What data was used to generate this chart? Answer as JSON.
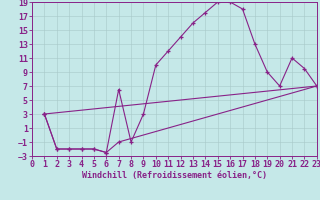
{
  "background_color": "#c5e8e8",
  "grid_color": "#a8c8c8",
  "line_color": "#882288",
  "xlabel": "Windchill (Refroidissement éolien,°C)",
  "xlim": [
    0,
    23
  ],
  "ylim": [
    -3,
    19
  ],
  "xticks": [
    0,
    1,
    2,
    3,
    4,
    5,
    6,
    7,
    8,
    9,
    10,
    11,
    12,
    13,
    14,
    15,
    16,
    17,
    18,
    19,
    20,
    21,
    22,
    23
  ],
  "yticks": [
    -3,
    -1,
    1,
    3,
    5,
    7,
    9,
    11,
    13,
    15,
    17,
    19
  ],
  "curve1_x": [
    1,
    2,
    3,
    4,
    5,
    6,
    7,
    8,
    9,
    10,
    11,
    12,
    13,
    14,
    15,
    16,
    17,
    18,
    19,
    20,
    21,
    22,
    23
  ],
  "curve1_y": [
    3,
    -2,
    -2,
    -2,
    -2,
    -2.5,
    6.5,
    -1,
    3,
    10,
    12,
    14,
    16,
    17.5,
    19,
    19,
    18,
    13,
    9,
    7,
    11,
    9.5,
    7
  ],
  "curve2_x": [
    1,
    2,
    3,
    4,
    5,
    6,
    7,
    23
  ],
  "curve2_y": [
    3,
    -2,
    -2,
    -2,
    -2,
    -2.5,
    -1,
    7
  ],
  "curve3_x": [
    1,
    23
  ],
  "curve3_y": [
    3,
    7
  ],
  "font_size": 6,
  "font_family": "monospace",
  "marker_size": 3.5,
  "linewidth": 0.8
}
